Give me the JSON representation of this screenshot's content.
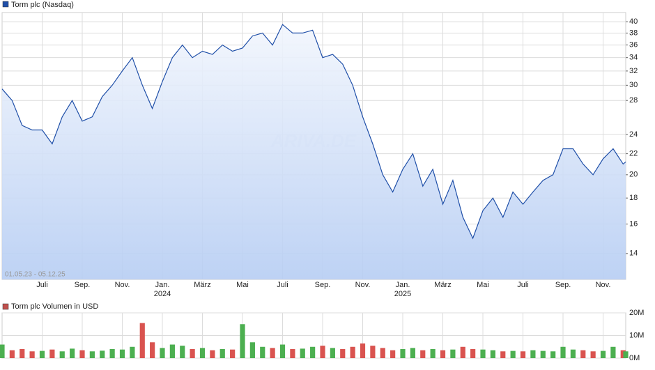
{
  "chart_data": [
    {
      "type": "line",
      "title": "Torm plc (Nasdaq)",
      "date_range": "01.05.23 - 05.12.25",
      "watermark": "ARIVA.DE",
      "log_scale": true,
      "grid": true,
      "color": "#1f4fa8",
      "fill_top": "#f2f6fd",
      "fill_bottom": "#b6cdf3",
      "xlim": [
        0,
        31.13
      ],
      "ylim": [
        12.45,
        41.7
      ],
      "xticks": [
        {
          "value": 2,
          "label": "Juli"
        },
        {
          "value": 4,
          "label": "Sep."
        },
        {
          "value": 6,
          "label": "Nov."
        },
        {
          "value": 8,
          "label": "Jan."
        },
        {
          "value": 10,
          "label": "März"
        },
        {
          "value": 12,
          "label": "Mai"
        },
        {
          "value": 14,
          "label": "Juli"
        },
        {
          "value": 16,
          "label": "Sep."
        },
        {
          "value": 18,
          "label": "Nov."
        },
        {
          "value": 20,
          "label": "Jan."
        },
        {
          "value": 22,
          "label": "März"
        },
        {
          "value": 24,
          "label": "Mai"
        },
        {
          "value": 26,
          "label": "Juli"
        },
        {
          "value": 28,
          "label": "Sep."
        },
        {
          "value": 30,
          "label": "Nov."
        }
      ],
      "year_labels": [
        {
          "value": 8,
          "label": "2024"
        },
        {
          "value": 20,
          "label": "2025"
        }
      ],
      "yticks": [
        14,
        16,
        18,
        20,
        22,
        24,
        28,
        30,
        32,
        34,
        36,
        38,
        40
      ],
      "x": [
        0,
        0.5,
        1,
        1.5,
        2,
        2.5,
        3,
        3.5,
        4,
        4.5,
        5,
        5.5,
        6,
        6.5,
        7,
        7.5,
        8,
        8.5,
        9,
        9.5,
        10,
        10.5,
        11,
        11.5,
        12,
        12.5,
        13,
        13.5,
        14,
        14.5,
        15,
        15.5,
        16,
        16.5,
        17,
        17.5,
        18,
        18.5,
        19,
        19.5,
        20,
        20.5,
        21,
        21.5,
        22,
        22.5,
        23,
        23.5,
        24,
        24.5,
        25,
        25.5,
        26,
        26.5,
        27,
        27.5,
        28,
        28.5,
        29,
        29.5,
        30,
        30.5,
        31,
        31.13
      ],
      "values": [
        29.5,
        28,
        25,
        24.5,
        24.5,
        23,
        26,
        28,
        25.5,
        26,
        28.5,
        30,
        32,
        34,
        30,
        27,
        30.5,
        34,
        36,
        34,
        35,
        34.5,
        36,
        35,
        35.5,
        37.5,
        38,
        36,
        39.5,
        38,
        38,
        38.5,
        34,
        34.5,
        33,
        30,
        26,
        23,
        20,
        18.5,
        20.5,
        22,
        19,
        20.5,
        17.5,
        19.5,
        16.5,
        15,
        17,
        18,
        16.5,
        18.5,
        17.5,
        18.5,
        19.5,
        20,
        22.5,
        22.5,
        21,
        20,
        21.5,
        22.5,
        21,
        21.2
      ]
    },
    {
      "type": "volume",
      "title": "Torm plc Volumen in USD",
      "legend_color": "#c0504d",
      "up_color": "#4caf50",
      "down_color": "#d9534f",
      "grid": true,
      "ylim": [
        0,
        20000000
      ],
      "yticks": [
        {
          "value": 0,
          "label": "0M"
        },
        {
          "value": 10000000,
          "label": "10M"
        },
        {
          "value": 20000000,
          "label": "20M"
        }
      ],
      "values": [
        6000000,
        3500000,
        4000000,
        3000000,
        3200000,
        3800000,
        3000000,
        4200000,
        3500000,
        3000000,
        3300000,
        4000000,
        3800000,
        5000000,
        15500000,
        7000000,
        4500000,
        6000000,
        5500000,
        4000000,
        4500000,
        3500000,
        4000000,
        3800000,
        15000000,
        7000000,
        5000000,
        4500000,
        6000000,
        4000000,
        4200000,
        5000000,
        5500000,
        4500000,
        4000000,
        5000000,
        6500000,
        5500000,
        4500000,
        3500000,
        4000000,
        4500000,
        3500000,
        4000000,
        3500000,
        3800000,
        5000000,
        4000000,
        3800000,
        3500000,
        3000000,
        3200000,
        3000000,
        3500000,
        3200000,
        3000000,
        5000000,
        3800000,
        3500000,
        3000000,
        3200000,
        5000000,
        3500000,
        3000000
      ]
    }
  ]
}
